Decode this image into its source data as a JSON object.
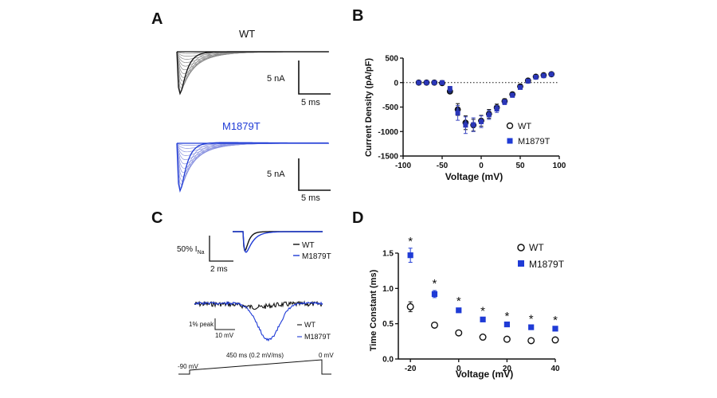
{
  "colors": {
    "wt": "#111111",
    "mut": "#1f3bd6",
    "mutLight": "#8a93e0",
    "grey": "#666666",
    "navy": "#15206a"
  },
  "panels": {
    "A": {
      "letter": "A",
      "wt_label": "WT",
      "mut_label": "M1879T",
      "scale_current": "5 nA",
      "scale_time": "5 ms"
    },
    "C": {
      "letter": "C",
      "scale_current_prefix": "50% I",
      "scale_current_sub": "Na",
      "scale_time": "2 ms",
      "legend_wt": "WT",
      "legend_mut": "M1879T",
      "ramp_scale_current": "1% peak",
      "ramp_scale_voltage": "10 mV",
      "ramp_legend_wt": "WT",
      "ramp_legend_mut": "M1879T",
      "protocol_label": "450 ms (0.2 mV/ms)",
      "protocol_start": "-90 mV",
      "protocol_end": "0 mV"
    }
  },
  "chart_data": [
    {
      "panel": "B",
      "letter": "B",
      "type": "scatter",
      "xlabel": "Voltage  (mV)",
      "ylabel": "Current Density (pA/pF)",
      "xlim": [
        -100,
        100
      ],
      "ylim": [
        -1500,
        500
      ],
      "xticks": [
        -100,
        -50,
        0,
        50,
        100
      ],
      "yticks": [
        500,
        0,
        -500,
        -1000,
        -1500
      ],
      "zero_line": "dotted",
      "legend_position": "right",
      "series": [
        {
          "name": "WT",
          "marker": "open-circle",
          "x": [
            -80,
            -70,
            -60,
            -50,
            -40,
            -30,
            -20,
            -10,
            0,
            10,
            20,
            30,
            40,
            50,
            60,
            70,
            80,
            90
          ],
          "y": [
            0,
            0,
            0,
            -10,
            -180,
            -550,
            -820,
            -870,
            -780,
            -640,
            -510,
            -380,
            -240,
            -80,
            40,
            120,
            150,
            170
          ],
          "err": [
            5,
            5,
            5,
            15,
            40,
            120,
            140,
            120,
            110,
            90,
            70,
            50,
            40,
            25,
            20,
            15,
            15,
            15
          ]
        },
        {
          "name": "M1879T",
          "marker": "filled-square",
          "x": [
            -80,
            -70,
            -60,
            -50,
            -40,
            -30,
            -20,
            -10,
            0,
            10,
            20,
            30,
            40,
            50,
            60,
            70,
            80,
            90
          ],
          "y": [
            0,
            0,
            0,
            0,
            -120,
            -620,
            -870,
            -860,
            -800,
            -660,
            -540,
            -400,
            -260,
            -100,
            30,
            110,
            140,
            170
          ],
          "err": [
            5,
            5,
            5,
            15,
            40,
            150,
            170,
            140,
            120,
            90,
            70,
            50,
            40,
            25,
            20,
            15,
            15,
            15
          ]
        }
      ]
    },
    {
      "panel": "D",
      "letter": "D",
      "type": "scatter",
      "xlabel": "Voltage (mV)",
      "ylabel": "Time Constant (ms)",
      "xlim": [
        -25,
        40
      ],
      "ylim": [
        0,
        1.5
      ],
      "xticks": [
        -20,
        0,
        20,
        40
      ],
      "yticks": [
        0.0,
        0.5,
        1.0,
        1.5
      ],
      "ytick_labels": [
        "0.0",
        "0.5",
        "1.0",
        "1.5"
      ],
      "legend_position": "top-right",
      "annotation": "*",
      "series": [
        {
          "name": "WT",
          "marker": "open-circle",
          "x": [
            -20,
            -10,
            0,
            10,
            20,
            30,
            40
          ],
          "y": [
            0.74,
            0.48,
            0.37,
            0.31,
            0.28,
            0.26,
            0.27
          ],
          "err": [
            0.07,
            0.03,
            0.02,
            0.02,
            0.02,
            0.02,
            0.02
          ]
        },
        {
          "name": "M1879T",
          "marker": "filled-square",
          "x": [
            -20,
            -10,
            0,
            10,
            20,
            30,
            40
          ],
          "y": [
            1.47,
            0.92,
            0.69,
            0.56,
            0.49,
            0.45,
            0.43
          ],
          "err": [
            0.1,
            0.05,
            0.03,
            0.02,
            0.02,
            0.02,
            0.02
          ]
        }
      ]
    }
  ]
}
